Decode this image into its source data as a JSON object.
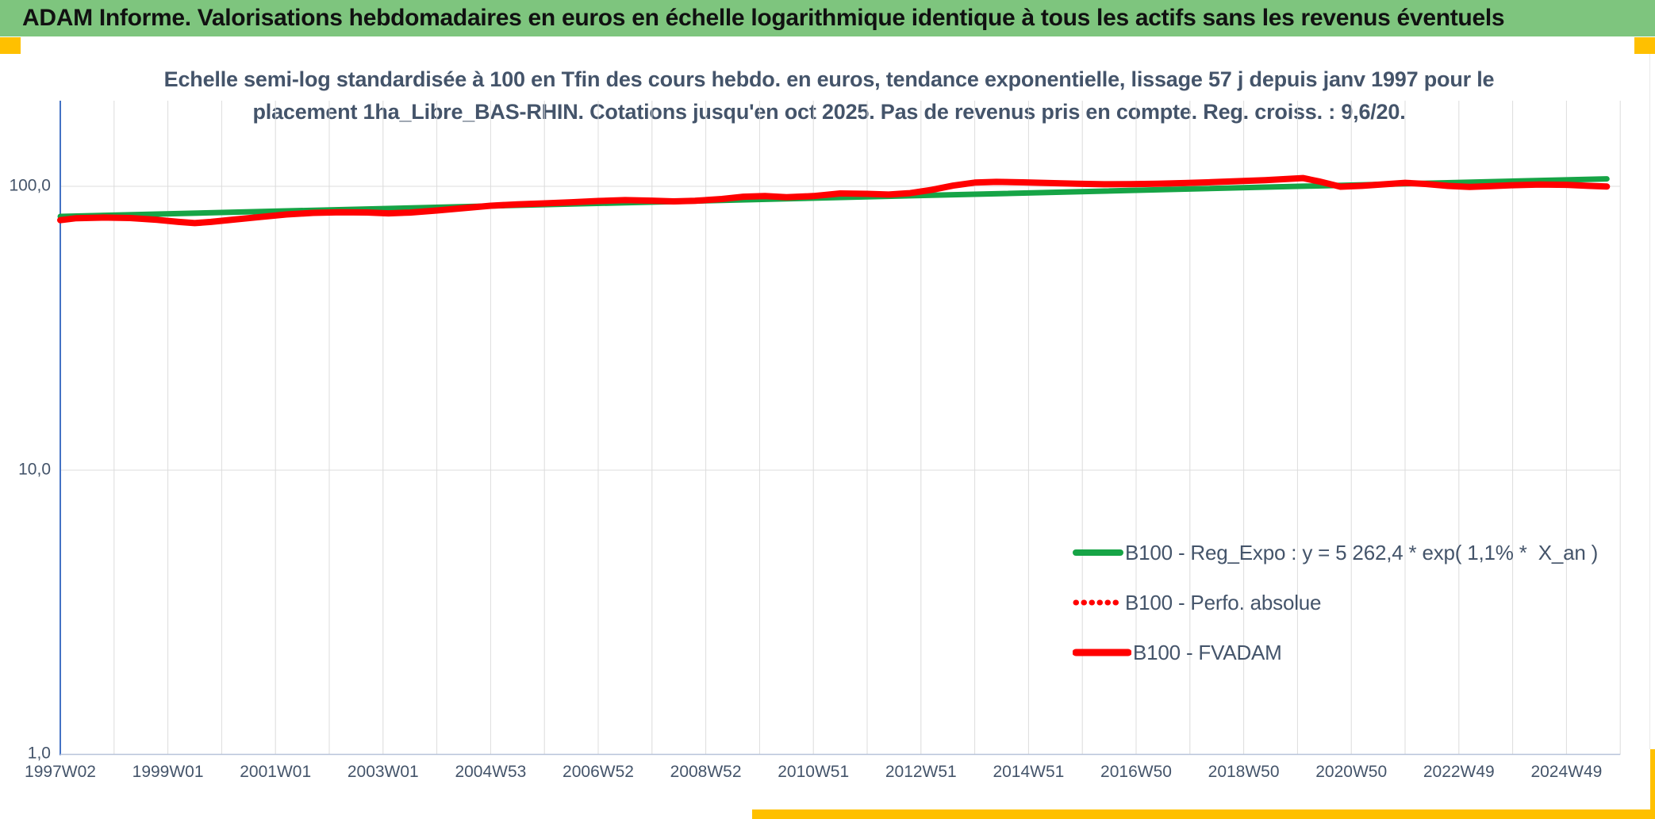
{
  "header": {
    "title": "ADAM Informe. Valorisations hebdomadaires en euros en échelle logarithmique identique à tous les actifs sans les revenus éventuels"
  },
  "subtitle": {
    "line1": "Echelle semi-log standardisée à 100 en Tfin des cours hebdo. en euros, tendance exponentielle, lissage 57 j depuis janv 1997 pour le",
    "line2": "placement 1ha_Libre_BAS-RHIN. Cotations jusqu'en oct 2025. Pas de revenus pris en compte. Reg. croiss. : 9,6/20."
  },
  "colors": {
    "header_bg": "#7EC57E",
    "accent_gold": "#FFC000",
    "text_dark": "#44546A",
    "green_line": "#16A446",
    "red_line": "#FF0000",
    "grid": "#DCDCDC",
    "y_axis": "#4472C4",
    "x_axis": "#B7C3D9"
  },
  "chart_data": {
    "type": "line",
    "title": "Echelle semi-log standardisée à 100 en Tfin des cours hebdo. en euros, tendance exponentielle, lissage 57 j depuis janv 1997 pour le placement 1ha_Libre_BAS-RHIN. Cotations jusqu'en oct 2025. Pas de revenus pris en compte. Reg. croiss. : 9,6/20.",
    "y_axis": {
      "scale": "log",
      "min": 1,
      "max": 200,
      "ticks": [
        {
          "label": "100,0",
          "value": 100
        },
        {
          "label": "10,0",
          "value": 10
        },
        {
          "label": "1,0",
          "value": 1
        }
      ]
    },
    "x_axis": {
      "grid_years": {
        "start": 1997,
        "end": 2026,
        "step": 1
      },
      "ticks": [
        {
          "label": "1997W02",
          "year": 1997
        },
        {
          "label": "1999W01",
          "year": 1999
        },
        {
          "label": "2001W01",
          "year": 2001
        },
        {
          "label": "2003W01",
          "year": 2003
        },
        {
          "label": "2004W53",
          "year": 2005
        },
        {
          "label": "2006W52",
          "year": 2007
        },
        {
          "label": "2008W52",
          "year": 2009
        },
        {
          "label": "2010W51",
          "year": 2011
        },
        {
          "label": "2012W51",
          "year": 2013
        },
        {
          "label": "2014W51",
          "year": 2015
        },
        {
          "label": "2016W50",
          "year": 2017
        },
        {
          "label": "2018W50",
          "year": 2019
        },
        {
          "label": "2020W50",
          "year": 2021
        },
        {
          "label": "2022W49",
          "year": 2023
        },
        {
          "label": "2024W49",
          "year": 2025
        }
      ]
    },
    "series": [
      {
        "name": "B100 - Reg_Expo : y = 5 262,4 * exp( 1,1% *  X_an )",
        "color": "green",
        "style": "solid",
        "width": 7,
        "points": [
          [
            1997.0,
            78.3
          ],
          [
            2025.75,
            106.2
          ]
        ]
      },
      {
        "name": "B100 - Perfo. absolue",
        "color": "red",
        "style": "dotted",
        "width": 6,
        "points": [],
        "hidden_behind": "B100 - FVADAM"
      },
      {
        "name": "B100 - FVADAM",
        "color": "red",
        "style": "solid",
        "width": 8,
        "points": [
          [
            1997.0,
            76.0
          ],
          [
            1997.3,
            77.2
          ],
          [
            1997.8,
            77.6
          ],
          [
            1998.3,
            77.3
          ],
          [
            1998.8,
            76.2
          ],
          [
            1999.2,
            74.9
          ],
          [
            1999.5,
            74.2
          ],
          [
            1999.8,
            74.9
          ],
          [
            2000.2,
            76.3
          ],
          [
            2000.7,
            77.9
          ],
          [
            2001.2,
            79.6
          ],
          [
            2001.7,
            80.6
          ],
          [
            2002.2,
            81.0
          ],
          [
            2002.7,
            80.9
          ],
          [
            2003.1,
            80.3
          ],
          [
            2003.5,
            80.8
          ],
          [
            2004.0,
            82.2
          ],
          [
            2004.5,
            83.8
          ],
          [
            2005.0,
            85.4
          ],
          [
            2005.5,
            86.4
          ],
          [
            2006.0,
            87.1
          ],
          [
            2006.5,
            87.9
          ],
          [
            2007.0,
            88.8
          ],
          [
            2007.5,
            89.4
          ],
          [
            2008.0,
            89.0
          ],
          [
            2008.4,
            88.5
          ],
          [
            2008.8,
            88.9
          ],
          [
            2009.3,
            90.2
          ],
          [
            2009.7,
            91.9
          ],
          [
            2010.1,
            92.4
          ],
          [
            2010.5,
            91.5
          ],
          [
            2011.0,
            92.4
          ],
          [
            2011.5,
            94.4
          ],
          [
            2012.0,
            94.1
          ],
          [
            2012.4,
            93.5
          ],
          [
            2012.8,
            94.6
          ],
          [
            2013.2,
            97.2
          ],
          [
            2013.6,
            100.6
          ],
          [
            2014.0,
            103.1
          ],
          [
            2014.4,
            103.7
          ],
          [
            2014.9,
            103.3
          ],
          [
            2015.4,
            102.7
          ],
          [
            2015.9,
            102.1
          ],
          [
            2016.4,
            101.7
          ],
          [
            2016.9,
            101.8
          ],
          [
            2017.4,
            102.1
          ],
          [
            2017.9,
            102.7
          ],
          [
            2018.4,
            103.4
          ],
          [
            2018.9,
            104.3
          ],
          [
            2019.4,
            105.1
          ],
          [
            2019.8,
            106.1
          ],
          [
            2020.1,
            106.9
          ],
          [
            2020.4,
            104.1
          ],
          [
            2020.8,
            99.7
          ],
          [
            2021.2,
            100.4
          ],
          [
            2021.6,
            101.6
          ],
          [
            2022.0,
            102.9
          ],
          [
            2022.4,
            101.9
          ],
          [
            2022.8,
            100.3
          ],
          [
            2023.2,
            99.5
          ],
          [
            2023.6,
            100.1
          ],
          [
            2024.0,
            100.9
          ],
          [
            2024.5,
            101.4
          ],
          [
            2025.0,
            101.2
          ],
          [
            2025.4,
            100.4
          ],
          [
            2025.75,
            99.8
          ]
        ]
      }
    ],
    "legend": {
      "position": "inside-right"
    }
  }
}
